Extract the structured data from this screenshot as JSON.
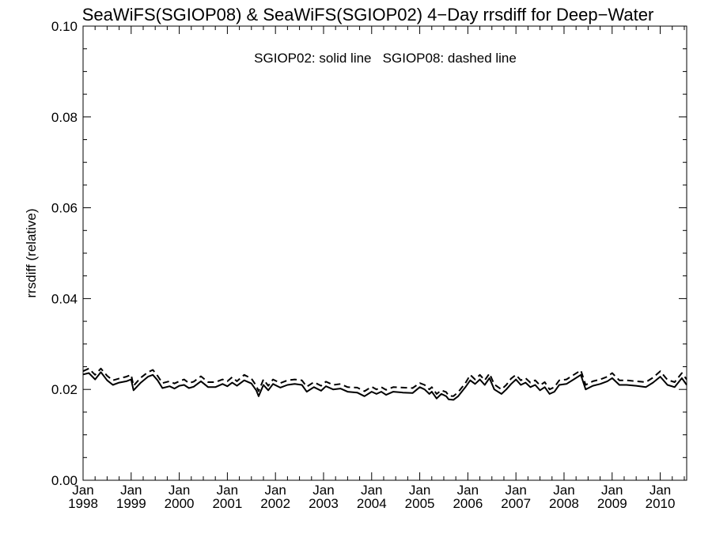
{
  "chart_data": {
    "type": "line",
    "title": "SeaWiFS(SGIOP08) & SeaWiFS(SGIOP02) 4−Day rrsdiff for Deep−Water",
    "annotation": "SGIOP02: solid line   SGIOP08: dashed line",
    "ylabel": "rrsdiff (relative)",
    "xlabel": "",
    "xlim": [
      1998.0,
      2010.55
    ],
    "ylim": [
      0.0,
      0.1
    ],
    "grid": false,
    "y_ticks": [
      {
        "value": 0.0,
        "label": "0.00"
      },
      {
        "value": 0.02,
        "label": "0.02"
      },
      {
        "value": 0.04,
        "label": "0.04"
      },
      {
        "value": 0.06,
        "label": "0.06"
      },
      {
        "value": 0.08,
        "label": "0.08"
      },
      {
        "value": 0.1,
        "label": "0.10"
      }
    ],
    "x_ticks": [
      {
        "value": 1998,
        "month": "Jan",
        "year": "1998"
      },
      {
        "value": 1999,
        "month": "Jan",
        "year": "1999"
      },
      {
        "value": 2000,
        "month": "Jan",
        "year": "2000"
      },
      {
        "value": 2001,
        "month": "Jan",
        "year": "2001"
      },
      {
        "value": 2002,
        "month": "Jan",
        "year": "2002"
      },
      {
        "value": 2003,
        "month": "Jan",
        "year": "2003"
      },
      {
        "value": 2004,
        "month": "Jan",
        "year": "2004"
      },
      {
        "value": 2005,
        "month": "Jan",
        "year": "2005"
      },
      {
        "value": 2006,
        "month": "Jan",
        "year": "2006"
      },
      {
        "value": 2007,
        "month": "Jan",
        "year": "2007"
      },
      {
        "value": 2008,
        "month": "Jan",
        "year": "2008"
      },
      {
        "value": 2009,
        "month": "Jan",
        "year": "2009"
      },
      {
        "value": 2010,
        "month": "Jan",
        "year": "2010"
      }
    ],
    "x": [
      1998.0,
      1998.12,
      1998.25,
      1998.37,
      1998.5,
      1998.62,
      1998.75,
      1998.9,
      1999.0,
      1999.05,
      1999.2,
      1999.35,
      1999.45,
      1999.55,
      1999.65,
      1999.8,
      1999.9,
      2000.0,
      2000.1,
      2000.2,
      2000.3,
      2000.45,
      2000.6,
      2000.75,
      2000.9,
      2001.0,
      2001.1,
      2001.2,
      2001.35,
      2001.5,
      2001.6,
      2001.65,
      2001.75,
      2001.85,
      2001.95,
      2002.1,
      2002.25,
      2002.4,
      2002.55,
      2002.65,
      2002.8,
      2002.95,
      2003.05,
      2003.2,
      2003.35,
      2003.5,
      2003.7,
      2003.85,
      2004.0,
      2004.1,
      2004.2,
      2004.3,
      2004.45,
      2004.65,
      2004.85,
      2005.0,
      2005.1,
      2005.2,
      2005.25,
      2005.35,
      2005.45,
      2005.55,
      2005.6,
      2005.7,
      2005.8,
      2005.95,
      2006.05,
      2006.15,
      2006.25,
      2006.35,
      2006.45,
      2006.55,
      2006.7,
      2006.8,
      2006.9,
      2007.0,
      2007.1,
      2007.2,
      2007.3,
      2007.4,
      2007.5,
      2007.6,
      2007.7,
      2007.8,
      2007.9,
      2008.05,
      2008.2,
      2008.35,
      2008.45,
      2008.6,
      2008.75,
      2008.9,
      2009.0,
      2009.15,
      2009.3,
      2009.5,
      2009.7,
      2009.85,
      2010.0,
      2010.15,
      2010.3,
      2010.45,
      2010.55
    ],
    "series": [
      {
        "name": "SGIOP02",
        "values": [
          0.0233,
          0.0236,
          0.0222,
          0.0238,
          0.022,
          0.021,
          0.0215,
          0.0218,
          0.0222,
          0.0198,
          0.0215,
          0.0228,
          0.0232,
          0.022,
          0.0203,
          0.0207,
          0.0202,
          0.0208,
          0.021,
          0.0203,
          0.0206,
          0.0218,
          0.0205,
          0.0205,
          0.0212,
          0.0207,
          0.0215,
          0.0208,
          0.022,
          0.0213,
          0.0198,
          0.0185,
          0.021,
          0.0198,
          0.0212,
          0.0204,
          0.021,
          0.0212,
          0.021,
          0.0195,
          0.0205,
          0.0197,
          0.0207,
          0.02,
          0.0202,
          0.0195,
          0.0193,
          0.0185,
          0.0195,
          0.019,
          0.0195,
          0.0188,
          0.0195,
          0.0193,
          0.0192,
          0.0205,
          0.02,
          0.019,
          0.0195,
          0.018,
          0.019,
          0.0185,
          0.0178,
          0.0177,
          0.0185,
          0.0205,
          0.022,
          0.0212,
          0.0222,
          0.021,
          0.0225,
          0.02,
          0.019,
          0.02,
          0.0212,
          0.0222,
          0.021,
          0.0215,
          0.0205,
          0.021,
          0.0198,
          0.0205,
          0.019,
          0.0195,
          0.021,
          0.0212,
          0.0222,
          0.0232,
          0.02,
          0.0208,
          0.0212,
          0.0218,
          0.0225,
          0.021,
          0.021,
          0.0208,
          0.0205,
          0.0215,
          0.0228,
          0.021,
          0.0205,
          0.0225,
          0.021
        ]
      },
      {
        "name": "SGIOP08",
        "values": [
          0.024,
          0.0246,
          0.0232,
          0.0246,
          0.023,
          0.022,
          0.0224,
          0.0228,
          0.0232,
          0.0208,
          0.0226,
          0.0238,
          0.0243,
          0.023,
          0.0214,
          0.0218,
          0.0213,
          0.0218,
          0.0222,
          0.0214,
          0.0217,
          0.0229,
          0.0216,
          0.0216,
          0.0222,
          0.0218,
          0.0227,
          0.0218,
          0.0232,
          0.0224,
          0.0208,
          0.0196,
          0.0222,
          0.0208,
          0.0222,
          0.0214,
          0.022,
          0.0222,
          0.022,
          0.0206,
          0.0216,
          0.0208,
          0.0217,
          0.021,
          0.0212,
          0.0205,
          0.0204,
          0.0196,
          0.0206,
          0.02,
          0.0205,
          0.0199,
          0.0205,
          0.0204,
          0.0203,
          0.0214,
          0.021,
          0.02,
          0.0205,
          0.019,
          0.0198,
          0.0194,
          0.0186,
          0.0185,
          0.0194,
          0.0214,
          0.0232,
          0.0222,
          0.0232,
          0.022,
          0.0235,
          0.0211,
          0.02,
          0.021,
          0.0224,
          0.0232,
          0.022,
          0.0225,
          0.0215,
          0.022,
          0.0209,
          0.0216,
          0.02,
          0.0205,
          0.022,
          0.0222,
          0.0232,
          0.0242,
          0.021,
          0.0218,
          0.0222,
          0.0228,
          0.0236,
          0.022,
          0.022,
          0.0218,
          0.0216,
          0.0226,
          0.024,
          0.0221,
          0.0216,
          0.0236,
          0.0222
        ]
      }
    ]
  }
}
